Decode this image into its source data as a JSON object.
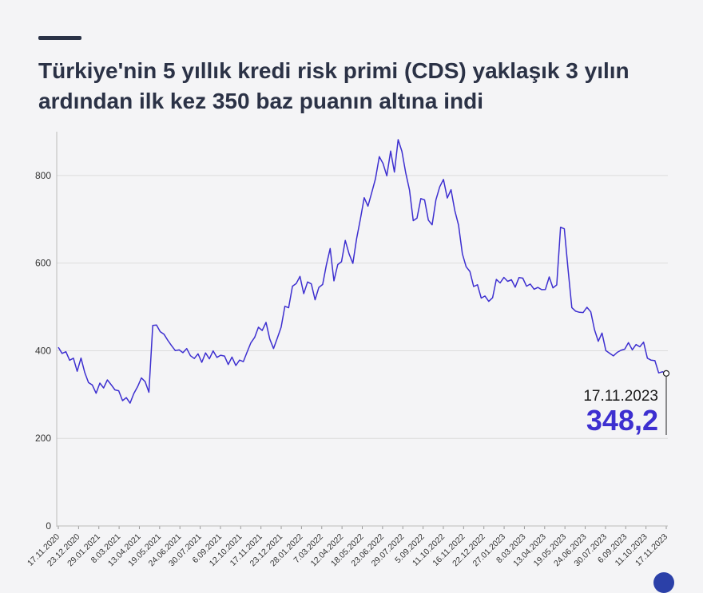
{
  "header": {
    "title_line1": "Türkiye'nin 5 yıllık kredi risk primi (CDS) yaklaşık 3 yılın",
    "title_line2": "ardından ilk kez 350 baz puanın altına indi"
  },
  "colors": {
    "line": "#3d2fd0",
    "grid": "#dcdcdc",
    "title": "#2b3246"
  },
  "annotation": {
    "date": "17.11.2023",
    "value": "348,2"
  },
  "chart_data": {
    "type": "line",
    "title": "Türkiye'nin 5 yıllık kredi risk primi (CDS) yaklaşık 3 yılın ardından ilk kez 350 baz puanın altına indi",
    "xlabel": "",
    "ylabel": "",
    "ylim": [
      0,
      900
    ],
    "yticks": [
      0,
      200,
      400,
      600,
      800
    ],
    "grid": "horizontal",
    "x_tick_labels": [
      "17.11.2020",
      "23.12.2020",
      "29.01.2021",
      "8.03.2021",
      "13.04.2021",
      "19.05.2021",
      "24.06.2021",
      "30.07.2021",
      "6.09.2021",
      "12.10.2021",
      "17.11.2021",
      "23.12.2021",
      "28.01.2022",
      "7.03.2022",
      "12.04.2022",
      "18.05.2022",
      "23.06.2022",
      "29.07.2022",
      "5.09.2022",
      "11.10.2022",
      "16.11.2022",
      "22.12.2022",
      "27.01.2023",
      "8.03.2023",
      "13.04.2023",
      "19.05.2023",
      "24.06.2023",
      "30.07.2023",
      "6.09.2023",
      "11.10.2023",
      "17.11.2023"
    ],
    "series": [
      {
        "values": [
          408,
          400,
          390,
          380,
          372,
          360,
          385,
          355,
          330,
          312,
          305,
          318,
          325,
          335,
          325,
          310,
          298,
          290,
          288,
          292,
          302,
          318,
          335,
          320,
          312,
          455,
          470,
          440,
          435,
          420,
          405,
          410,
          400,
          405,
          398,
          385,
          380,
          390,
          385,
          392,
          388,
          390,
          382,
          390,
          388,
          380,
          380,
          370,
          368,
          375,
          400,
          420,
          440,
          445,
          448,
          455,
          430,
          410,
          430,
          460,
          490,
          500,
          540,
          560,
          575,
          530,
          560,
          540,
          520,
          540,
          560,
          600,
          630,
          560,
          585,
          610,
          650,
          630,
          600,
          650,
          700,
          740,
          740,
          760,
          800,
          840,
          820,
          800,
          850,
          820,
          880,
          860,
          800,
          760,
          700,
          700,
          760,
          740,
          700,
          680,
          740,
          780,
          790,
          760,
          760,
          720,
          680,
          620,
          600,
          580,
          555,
          540,
          520,
          520,
          515,
          530,
          560,
          560,
          555,
          560,
          560,
          550,
          575,
          560,
          550,
          540,
          545,
          545,
          545,
          545,
          560,
          545,
          540,
          690,
          680,
          590,
          500,
          480,
          490,
          480,
          510,
          490,
          450,
          420,
          430,
          405,
          390,
          400,
          395,
          400,
          400,
          410,
          410,
          412,
          420,
          415,
          380,
          375,
          372,
          360,
          350,
          348.2
        ]
      }
    ]
  }
}
